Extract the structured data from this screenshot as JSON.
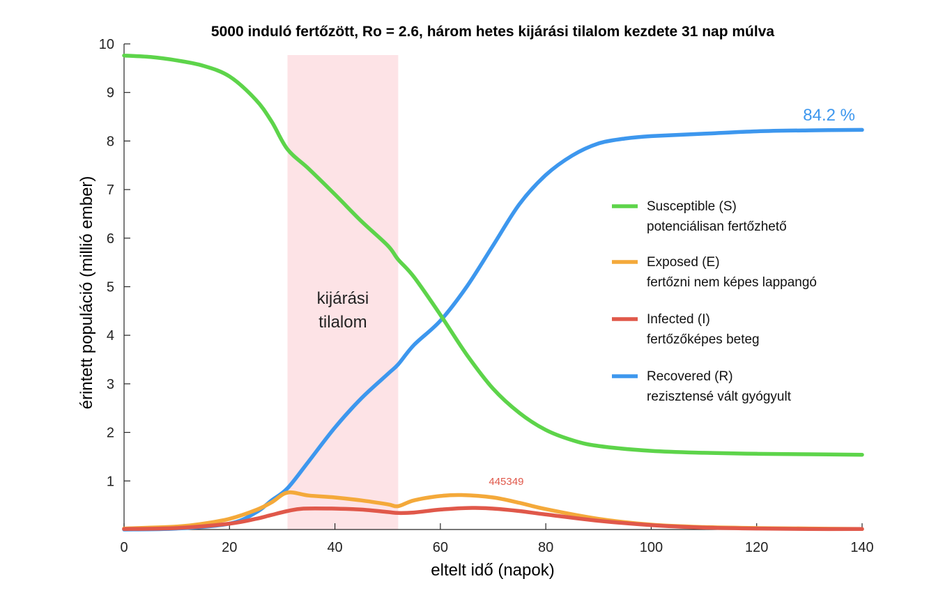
{
  "chart_data": {
    "type": "line",
    "title": "5000 induló fertőzött, Ro = 2.6, három hetes kijárási tilalom kezdete 31 nap múlva",
    "xlabel": "eltelt idő (napok)",
    "ylabel": "érintett populáció (millió ember)",
    "xlim": [
      0,
      140
    ],
    "ylim": [
      0,
      10
    ],
    "xticks": [
      0,
      20,
      40,
      60,
      80,
      100,
      120,
      140
    ],
    "yticks": [
      1,
      2,
      3,
      4,
      5,
      6,
      7,
      8,
      9,
      10
    ],
    "grid": false,
    "legend_position": "right",
    "shaded_region": {
      "x": [
        31,
        52
      ],
      "label_lines": [
        "kijárási",
        "tilalom"
      ],
      "color": "#fde3e6"
    },
    "series": [
      {
        "name": "Susceptible (S)",
        "subtitle": "potenciálisan fertőzhető",
        "color": "#5dd44a",
        "x": [
          0,
          5,
          10,
          15,
          20,
          25,
          28,
          31,
          35,
          40,
          45,
          50,
          52,
          55,
          60,
          65,
          70,
          75,
          80,
          85,
          90,
          100,
          110,
          120,
          130,
          140
        ],
        "y": [
          9.76,
          9.73,
          9.66,
          9.55,
          9.33,
          8.85,
          8.4,
          7.83,
          7.43,
          6.9,
          6.35,
          5.85,
          5.56,
          5.2,
          4.42,
          3.6,
          2.9,
          2.4,
          2.05,
          1.84,
          1.72,
          1.62,
          1.58,
          1.56,
          1.55,
          1.54
        ]
      },
      {
        "name": "Exposed (E)",
        "subtitle": "fertőzni nem képes lappangó",
        "color": "#f4a93a",
        "x": [
          0,
          10,
          15,
          20,
          25,
          28,
          31,
          35,
          40,
          45,
          50,
          52,
          55,
          60,
          64,
          70,
          75,
          80,
          90,
          100,
          110,
          120,
          130,
          140
        ],
        "y": [
          0.02,
          0.06,
          0.12,
          0.22,
          0.4,
          0.56,
          0.76,
          0.7,
          0.66,
          0.6,
          0.52,
          0.48,
          0.6,
          0.69,
          0.71,
          0.66,
          0.55,
          0.42,
          0.22,
          0.1,
          0.05,
          0.03,
          0.02,
          0.01
        ]
      },
      {
        "name": "Infected (I)",
        "subtitle": "fertőzőképes beteg",
        "color": "#e0584a",
        "x": [
          0,
          10,
          20,
          25,
          28,
          31,
          34,
          40,
          45,
          50,
          52,
          55,
          60,
          66,
          70,
          75,
          80,
          90,
          100,
          110,
          120,
          130,
          140
        ],
        "y": [
          0.01,
          0.03,
          0.12,
          0.22,
          0.3,
          0.38,
          0.43,
          0.43,
          0.41,
          0.36,
          0.34,
          0.35,
          0.41,
          0.445349,
          0.43,
          0.38,
          0.31,
          0.18,
          0.09,
          0.04,
          0.02,
          0.01,
          0.01
        ]
      },
      {
        "name": "Recovered (R)",
        "subtitle": "rezisztensé vált gyógyult",
        "color": "#3d97ee",
        "x": [
          0,
          10,
          20,
          25,
          28,
          31,
          35,
          40,
          45,
          50,
          52,
          55,
          60,
          65,
          70,
          75,
          80,
          85,
          90,
          95,
          100,
          110,
          120,
          130,
          140
        ],
        "y": [
          0.0,
          0.02,
          0.12,
          0.35,
          0.6,
          0.85,
          1.4,
          2.1,
          2.7,
          3.2,
          3.4,
          3.8,
          4.3,
          5.0,
          5.85,
          6.7,
          7.3,
          7.7,
          7.95,
          8.05,
          8.1,
          8.15,
          8.2,
          8.22,
          8.23
        ]
      }
    ],
    "annotations": {
      "end_label": "84.2 %",
      "peak_label": "445349"
    }
  }
}
